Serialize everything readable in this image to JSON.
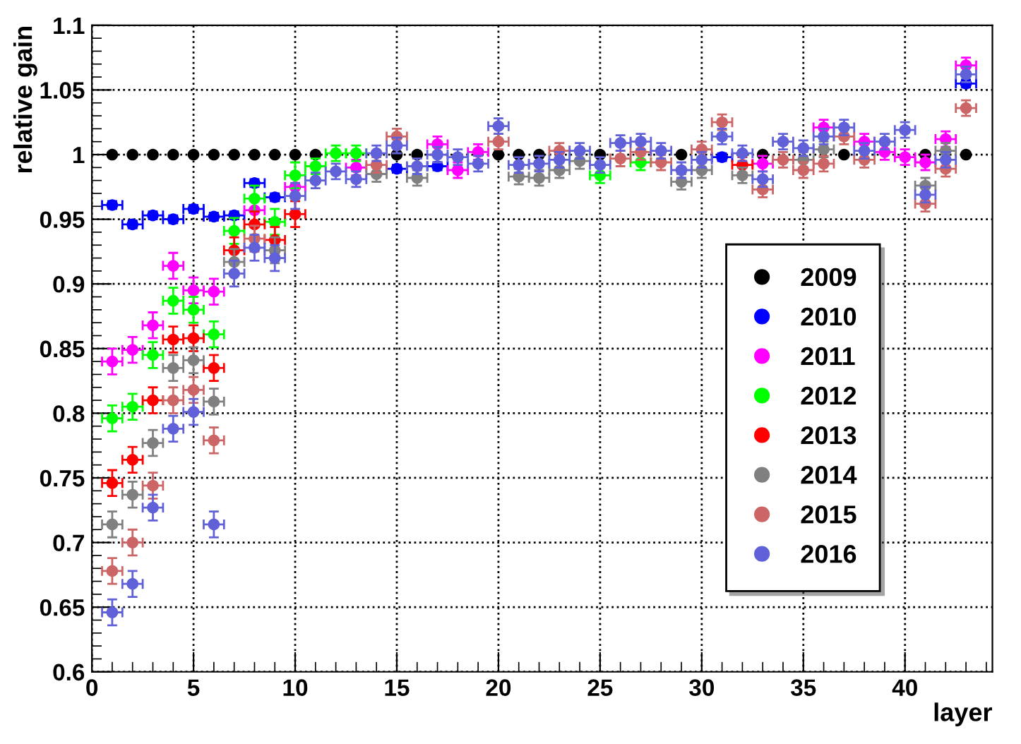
{
  "chart_data": {
    "type": "scatter",
    "xlabel": "layer",
    "ylabel": "relative gain",
    "x": [
      1,
      2,
      3,
      4,
      5,
      6,
      7,
      8,
      9,
      10,
      11,
      12,
      13,
      14,
      15,
      16,
      17,
      18,
      19,
      20,
      21,
      22,
      23,
      24,
      25,
      26,
      27,
      28,
      29,
      30,
      31,
      32,
      33,
      34,
      35,
      36,
      37,
      38,
      39,
      40,
      41,
      42,
      43
    ],
    "xlim": [
      0,
      44.3
    ],
    "ylim": [
      0.6,
      1.1
    ],
    "xticks": [
      0,
      5,
      10,
      15,
      20,
      25,
      30,
      35,
      40
    ],
    "yticks": [
      0.6,
      0.65,
      0.7,
      0.75,
      0.8,
      0.85,
      0.9,
      0.95,
      1,
      1.05,
      1.1
    ],
    "grid": true,
    "legend": "bottom right",
    "marker": "circle",
    "series": [
      {
        "name": "2009",
        "color": "#000000",
        "values": [
          1,
          1,
          1,
          1,
          1,
          1,
          1,
          1,
          1,
          1,
          1,
          null,
          null,
          null,
          1,
          1,
          null,
          null,
          null,
          1,
          1,
          1,
          null,
          null,
          1,
          null,
          null,
          null,
          1,
          null,
          null,
          null,
          1,
          null,
          null,
          null,
          1,
          null,
          null,
          null,
          1,
          null,
          1
        ]
      },
      {
        "name": "2010",
        "color": "#0000ff",
        "values": [
          0.961,
          0.946,
          0.953,
          0.95,
          0.958,
          0.952,
          0.953,
          0.978,
          0.967,
          null,
          null,
          null,
          null,
          null,
          0.989,
          null,
          0.991,
          null,
          null,
          null,
          null,
          null,
          null,
          null,
          null,
          null,
          null,
          null,
          null,
          null,
          0.998,
          null,
          null,
          null,
          null,
          null,
          null,
          null,
          null,
          null,
          null,
          null,
          1.055
        ],
        "errors": [
          0.003,
          0.003,
          0.003,
          0.003,
          0.003,
          0.003,
          0.003,
          0.003,
          0.003,
          null,
          null,
          null,
          null,
          null,
          0.003,
          null,
          0.003,
          null,
          null,
          null,
          null,
          null,
          null,
          null,
          null,
          null,
          null,
          null,
          null,
          null,
          0.003,
          null,
          null,
          null,
          null,
          null,
          null,
          null,
          null,
          null,
          null,
          null,
          0.003
        ],
        "xerrors": [
          0.5,
          0.5,
          0.5,
          0.5,
          0.5,
          0.5,
          0.5,
          0.5,
          0.5,
          null,
          null,
          null,
          null,
          null,
          0.5,
          null,
          0.5,
          null,
          null,
          null,
          null,
          null,
          null,
          null,
          null,
          null,
          null,
          null,
          null,
          null,
          0.5,
          null,
          null,
          null,
          null,
          null,
          null,
          null,
          null,
          null,
          null,
          null,
          0.5
        ]
      },
      {
        "name": "2011",
        "color": "#ff00ff",
        "values": [
          0.84,
          0.849,
          0.868,
          0.914,
          0.895,
          0.894,
          null,
          0.957,
          null,
          0.975,
          null,
          null,
          0.99,
          null,
          null,
          null,
          1.008,
          0.988,
          1.002,
          null,
          null,
          null,
          null,
          null,
          null,
          null,
          null,
          null,
          null,
          null,
          null,
          null,
          0.993,
          null,
          null,
          1.021,
          null,
          1.01,
          1.002,
          0.998,
          0.994,
          1.012,
          1.069
        ],
        "errors": [
          0.01,
          0.01,
          0.01,
          0.01,
          0.01,
          0.01,
          null,
          null,
          null,
          null,
          null,
          null,
          0.006,
          null,
          null,
          null,
          0.006,
          0.006,
          0.006,
          null,
          null,
          null,
          null,
          null,
          null,
          null,
          null,
          null,
          null,
          null,
          null,
          null,
          0.006,
          null,
          null,
          0.006,
          null,
          0.006,
          0.006,
          0.006,
          0.006,
          0.006,
          0.006
        ],
        "xerrors": [
          0.5,
          0.5,
          0.5,
          0.5,
          0.5,
          0.5,
          null,
          0.5,
          null,
          0.5,
          null,
          null,
          0.5,
          null,
          null,
          null,
          0.5,
          0.5,
          0.5,
          null,
          null,
          null,
          null,
          null,
          null,
          null,
          null,
          null,
          null,
          null,
          null,
          null,
          0.5,
          null,
          null,
          0.5,
          null,
          0.5,
          0.5,
          0.5,
          0.5,
          0.5,
          0.5
        ]
      },
      {
        "name": "2012",
        "color": "#00ff00",
        "values": [
          0.796,
          0.805,
          0.845,
          0.887,
          0.88,
          0.861,
          0.941,
          0.966,
          0.948,
          0.984,
          0.991,
          1.001,
          1.001,
          null,
          null,
          null,
          null,
          null,
          null,
          null,
          null,
          null,
          null,
          null,
          0.984,
          null,
          0.994,
          null,
          null,
          null,
          null,
          null,
          null,
          null,
          null,
          null,
          null,
          null,
          null,
          null,
          null,
          null,
          null
        ],
        "errors": [
          0.01,
          0.01,
          0.01,
          0.01,
          0.01,
          0.01,
          0.01,
          0.01,
          0.01,
          0.01,
          0.006,
          0.006,
          0.006,
          null,
          null,
          null,
          null,
          null,
          null,
          null,
          null,
          null,
          null,
          null,
          0.006,
          null,
          0.006,
          null,
          null,
          null,
          null,
          null,
          null,
          null,
          null,
          null,
          null,
          null,
          null,
          null,
          null,
          null,
          null
        ],
        "xerrors": [
          0.5,
          0.5,
          0.5,
          0.5,
          0.5,
          0.5,
          0.5,
          0.5,
          0.5,
          0.5,
          0.5,
          0.5,
          0.5,
          null,
          null,
          null,
          null,
          null,
          null,
          null,
          null,
          null,
          null,
          null,
          0.5,
          null,
          0.5,
          null,
          null,
          null,
          null,
          null,
          null,
          null,
          null,
          null,
          null,
          null,
          null,
          null,
          null,
          null,
          null
        ]
      },
      {
        "name": "2013",
        "color": "#ff0000",
        "values": [
          0.746,
          0.764,
          0.81,
          0.857,
          0.858,
          0.835,
          0.926,
          0.946,
          0.934,
          0.954,
          null,
          null,
          null,
          null,
          null,
          null,
          null,
          null,
          null,
          null,
          null,
          null,
          null,
          null,
          null,
          null,
          null,
          null,
          null,
          null,
          null,
          0.992,
          null,
          null,
          null,
          null,
          null,
          null,
          null,
          null,
          null,
          null,
          null
        ],
        "errors": [
          0.01,
          0.01,
          0.01,
          0.01,
          0.01,
          0.01,
          0.01,
          0.01,
          0.01,
          0.01,
          null,
          null,
          null,
          null,
          null,
          null,
          null,
          null,
          null,
          null,
          null,
          null,
          null,
          null,
          null,
          null,
          null,
          null,
          null,
          null,
          null,
          0.006,
          null,
          null,
          null,
          null,
          null,
          null,
          null,
          null,
          null,
          null,
          null
        ],
        "xerrors": [
          0.5,
          0.5,
          0.5,
          0.5,
          0.5,
          0.5,
          0.5,
          0.5,
          0.5,
          0.5,
          null,
          null,
          null,
          null,
          null,
          null,
          null,
          null,
          null,
          null,
          null,
          null,
          null,
          null,
          null,
          null,
          null,
          null,
          null,
          null,
          null,
          0.5,
          null,
          null,
          null,
          null,
          null,
          null,
          null,
          null,
          null,
          null,
          null
        ]
      },
      {
        "name": "2014",
        "color": "#808080",
        "values": [
          0.714,
          0.737,
          0.777,
          0.835,
          0.841,
          0.809,
          0.917,
          null,
          0.926,
          null,
          null,
          null,
          null,
          0.985,
          null,
          0.982,
          null,
          null,
          null,
          null,
          0.983,
          0.982,
          0.988,
          0.995,
          null,
          null,
          null,
          null,
          0.979,
          0.988,
          null,
          0.984,
          null,
          null,
          0.996,
          1.004,
          null,
          null,
          null,
          null,
          0.976,
          1.003,
          null
        ],
        "errors": [
          0.01,
          0.01,
          0.01,
          0.01,
          0.01,
          0.01,
          0.01,
          null,
          0.01,
          null,
          null,
          null,
          null,
          0.006,
          null,
          0.006,
          null,
          null,
          null,
          null,
          0.006,
          0.006,
          0.006,
          0.006,
          null,
          null,
          null,
          null,
          0.006,
          0.006,
          null,
          0.006,
          null,
          null,
          0.006,
          0.006,
          null,
          null,
          null,
          null,
          0.006,
          0.006,
          null
        ],
        "xerrors": [
          0.5,
          0.5,
          0.5,
          0.5,
          0.5,
          0.5,
          0.5,
          null,
          0.5,
          null,
          null,
          null,
          null,
          0.5,
          null,
          0.5,
          null,
          null,
          null,
          null,
          0.5,
          0.5,
          0.5,
          0.5,
          null,
          null,
          null,
          null,
          0.5,
          0.5,
          null,
          0.5,
          null,
          null,
          0.5,
          0.5,
          null,
          null,
          null,
          null,
          0.5,
          0.5,
          null
        ]
      },
      {
        "name": "2015",
        "color": "#cc6666",
        "values": [
          0.678,
          0.7,
          0.744,
          0.81,
          0.818,
          0.779,
          null,
          0.935,
          null,
          null,
          null,
          null,
          null,
          0.992,
          1.014,
          null,
          null,
          null,
          null,
          1.01,
          null,
          null,
          1.003,
          null,
          null,
          0.997,
          1.002,
          0.994,
          null,
          1.004,
          1.025,
          null,
          0.973,
          0.996,
          0.988,
          0.993,
          1.014,
          0.996,
          null,
          null,
          0.962,
          0.989,
          1.036
        ],
        "errors": [
          0.01,
          0.01,
          0.01,
          0.01,
          0.01,
          0.01,
          null,
          0.01,
          null,
          null,
          null,
          null,
          null,
          0.006,
          0.006,
          null,
          null,
          null,
          null,
          0.006,
          null,
          null,
          0.006,
          null,
          null,
          0.006,
          0.006,
          0.006,
          null,
          0.006,
          0.006,
          null,
          0.006,
          0.006,
          0.006,
          0.006,
          0.006,
          0.006,
          null,
          null,
          0.006,
          0.006,
          0.006
        ],
        "xerrors": [
          0.5,
          0.5,
          0.5,
          0.5,
          0.5,
          0.5,
          null,
          0.5,
          null,
          null,
          null,
          null,
          null,
          0.5,
          0.5,
          null,
          null,
          null,
          null,
          0.5,
          null,
          null,
          0.5,
          null,
          null,
          0.5,
          0.5,
          0.5,
          null,
          0.5,
          0.5,
          null,
          0.5,
          0.5,
          0.5,
          0.5,
          0.5,
          0.5,
          null,
          null,
          0.5,
          0.5,
          0.5
        ]
      },
      {
        "name": "2016",
        "color": "#6060d8",
        "values": [
          0.646,
          0.668,
          0.727,
          0.788,
          0.801,
          0.714,
          0.908,
          0.928,
          0.92,
          0.968,
          0.98,
          0.987,
          0.981,
          1.001,
          1.007,
          0.991,
          1.0,
          0.998,
          0.993,
          1.022,
          0.992,
          0.993,
          0.996,
          1.003,
          0.992,
          1.009,
          1.01,
          1.003,
          0.988,
          0.996,
          1.014,
          1.001,
          0.981,
          1.01,
          1.005,
          1.014,
          1.021,
          1.003,
          1.01,
          1.019,
          0.969,
          0.996,
          1.062
        ],
        "errors": [
          0.01,
          0.01,
          0.01,
          0.01,
          0.01,
          0.01,
          0.01,
          0.01,
          0.01,
          0.01,
          0.006,
          0.006,
          0.006,
          0.006,
          0.006,
          0.006,
          0.006,
          0.006,
          0.006,
          0.006,
          0.006,
          0.006,
          0.006,
          0.006,
          0.006,
          0.006,
          0.006,
          0.006,
          0.006,
          0.006,
          0.006,
          0.006,
          0.006,
          0.006,
          0.006,
          0.006,
          0.006,
          0.006,
          0.006,
          0.006,
          0.006,
          0.006,
          0.006
        ],
        "xerrors": [
          0.5,
          0.5,
          0.5,
          0.5,
          0.5,
          0.5,
          0.5,
          0.5,
          0.5,
          0.5,
          0.5,
          0.5,
          0.5,
          0.5,
          0.5,
          0.5,
          0.5,
          0.5,
          0.5,
          0.5,
          0.5,
          0.5,
          0.5,
          0.5,
          0.5,
          0.5,
          0.5,
          0.5,
          0.5,
          0.5,
          0.5,
          0.5,
          0.5,
          0.5,
          0.5,
          0.5,
          0.5,
          0.5,
          0.5,
          0.5,
          0.5,
          0.5,
          0.5
        ]
      }
    ]
  }
}
